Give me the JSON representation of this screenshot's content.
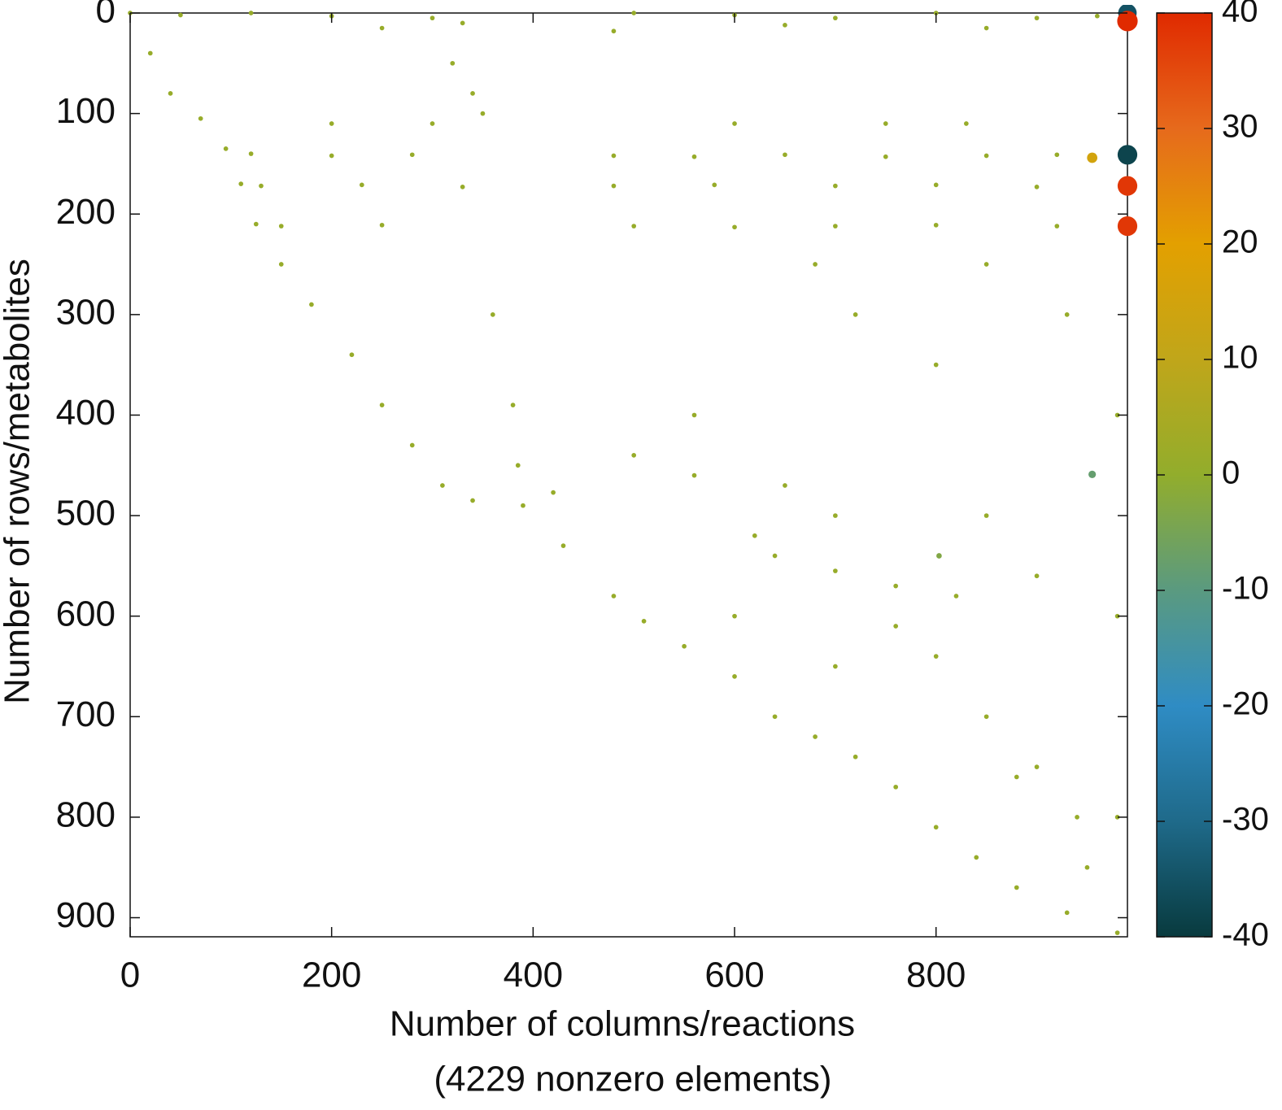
{
  "chart_data": {
    "type": "scatter",
    "xlabel": [
      "Number of columns/reactions",
      "(4229 nonzero elements)"
    ],
    "ylabel": "Number of rows/metabolites",
    "xlim": [
      0,
      990
    ],
    "ylim": [
      919,
      0
    ],
    "xticks": [
      0,
      200,
      400,
      600,
      800
    ],
    "yticks": [
      0,
      100,
      200,
      300,
      400,
      500,
      600,
      700,
      800,
      900
    ],
    "clim": [
      -40,
      40
    ],
    "cticks": [
      40,
      30,
      20,
      10,
      0,
      -10,
      -20,
      -30,
      -40
    ],
    "colormap": [
      "#083a3e",
      "#1f6a8a",
      "#2f8cc4",
      "#5a9a80",
      "#92ad2c",
      "#c0a61a",
      "#e3a000",
      "#e66a1c",
      "#e02a00"
    ],
    "x": [
      0,
      20,
      40,
      70,
      95,
      110,
      125,
      150,
      180,
      220,
      250,
      280,
      310,
      340,
      390,
      430,
      480,
      510,
      550,
      600,
      640,
      680,
      720,
      760,
      800,
      840,
      880,
      930,
      980,
      50,
      120,
      200,
      300,
      330,
      500,
      600,
      700,
      800,
      900,
      960,
      250,
      480,
      650,
      850,
      120,
      200,
      280,
      480,
      560,
      650,
      750,
      850,
      920,
      130,
      230,
      330,
      480,
      580,
      700,
      800,
      900,
      150,
      250,
      500,
      600,
      700,
      800,
      920,
      200,
      300,
      600,
      750,
      830,
      320,
      340,
      350,
      360,
      380,
      385,
      420,
      500,
      560,
      650,
      700,
      850,
      620,
      640,
      700,
      760,
      820,
      900,
      600,
      760,
      700,
      800,
      850,
      880,
      900,
      940,
      950,
      560,
      800,
      720,
      680,
      850,
      930,
      980,
      980,
      980,
      990,
      990,
      990,
      990,
      990,
      955,
      955,
      803
    ],
    "y": [
      0,
      40,
      80,
      105,
      135,
      170,
      210,
      250,
      290,
      340,
      390,
      430,
      470,
      485,
      490,
      530,
      580,
      605,
      630,
      660,
      700,
      720,
      740,
      770,
      810,
      840,
      870,
      895,
      915,
      2,
      0,
      3,
      5,
      10,
      0,
      2,
      5,
      0,
      5,
      3,
      15,
      18,
      12,
      15,
      140,
      142,
      141,
      142,
      143,
      141,
      143,
      142,
      141,
      172,
      171,
      173,
      172,
      171,
      172,
      171,
      173,
      212,
      211,
      212,
      213,
      212,
      211,
      212,
      110,
      110,
      110,
      110,
      110,
      50,
      80,
      100,
      300,
      390,
      450,
      477,
      440,
      460,
      470,
      500,
      500,
      520,
      540,
      555,
      570,
      580,
      560,
      600,
      610,
      650,
      640,
      700,
      760,
      750,
      800,
      850,
      400,
      350,
      300,
      250,
      250,
      300,
      400,
      600,
      800,
      0,
      8,
      141,
      172,
      212,
      144,
      459,
      540
    ],
    "values": [
      1,
      1,
      1,
      1,
      1,
      1,
      1,
      1,
      1,
      1,
      1,
      1,
      1,
      1,
      1,
      1,
      1,
      1,
      1,
      1,
      1,
      1,
      1,
      1,
      1,
      1,
      1,
      1,
      1,
      1,
      1,
      1,
      1,
      1,
      1,
      1,
      1,
      1,
      1,
      1,
      1,
      1,
      1,
      1,
      1,
      1,
      1,
      1,
      1,
      1,
      1,
      1,
      1,
      1,
      1,
      1,
      1,
      1,
      1,
      1,
      1,
      1,
      1,
      1,
      1,
      1,
      1,
      1,
      1,
      1,
      1,
      1,
      1,
      1,
      1,
      1,
      1,
      1,
      1,
      1,
      1,
      1,
      1,
      1,
      1,
      1,
      1,
      1,
      1,
      1,
      1,
      1,
      1,
      1,
      1,
      1,
      1,
      1,
      1,
      1,
      1,
      1,
      1,
      1,
      1,
      1,
      1,
      1,
      1,
      -35,
      40,
      -38,
      38,
      38,
      15,
      -8,
      -3
    ]
  }
}
